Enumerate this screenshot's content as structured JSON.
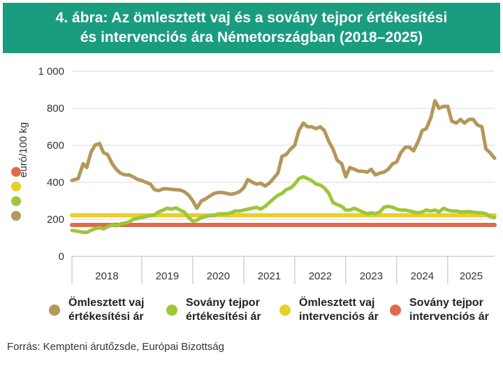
{
  "header": {
    "title_line1": "4. ábra: Az ömlesztett vaj és a sovány tejpor értékesítési",
    "title_line2": "és intervenciós ára Németországban (2018–2025)"
  },
  "colors": {
    "header_bg": "#1a9c7f",
    "butter_price": "#b4975a",
    "smp_price": "#9dc63b",
    "butter_intervention": "#e8cf2a",
    "smp_intervention": "#e06a4a"
  },
  "chart_data": {
    "type": "line",
    "ylabel": "euró/100 kg",
    "ylim": [
      0,
      1000
    ],
    "yticks": [
      "0",
      "200",
      "400",
      "600",
      "800",
      "1 000"
    ],
    "ytick_values": [
      0,
      200,
      400,
      600,
      800,
      1000
    ],
    "xlim": [
      2017.63,
      2025.92
    ],
    "year_labels": [
      "2018",
      "2019",
      "2020",
      "2021",
      "2022",
      "2023",
      "2024",
      "2025"
    ],
    "year_boundaries": [
      2019,
      2020,
      2021,
      2022,
      2023,
      2024,
      2025
    ],
    "grid": "horizontal",
    "series": [
      {
        "name": "Ömlesztett vaj értékesítési ár",
        "key": "butter",
        "x": [
          2017.63,
          2017.75,
          2017.85,
          2017.92,
          2018.0,
          2018.08,
          2018.17,
          2018.25,
          2018.33,
          2018.42,
          2018.5,
          2018.58,
          2018.67,
          2018.75,
          2018.83,
          2018.92,
          2019.0,
          2019.08,
          2019.17,
          2019.25,
          2019.33,
          2019.42,
          2019.5,
          2019.58,
          2019.67,
          2019.75,
          2019.83,
          2019.92,
          2020.0,
          2020.08,
          2020.17,
          2020.25,
          2020.33,
          2020.42,
          2020.5,
          2020.58,
          2020.67,
          2020.75,
          2020.83,
          2020.92,
          2021.0,
          2021.08,
          2021.17,
          2021.25,
          2021.33,
          2021.42,
          2021.5,
          2021.58,
          2021.67,
          2021.75,
          2021.83,
          2021.92,
          2022.0,
          2022.08,
          2022.17,
          2022.25,
          2022.33,
          2022.42,
          2022.5,
          2022.58,
          2022.67,
          2022.75,
          2022.83,
          2022.92,
          2023.0,
          2023.08,
          2023.17,
          2023.25,
          2023.33,
          2023.42,
          2023.5,
          2023.58,
          2023.67,
          2023.75,
          2023.83,
          2023.92,
          2024.0,
          2024.08,
          2024.17,
          2024.25,
          2024.33,
          2024.42,
          2024.5,
          2024.58,
          2024.67,
          2024.75,
          2024.83,
          2024.92,
          2025.0,
          2025.08,
          2025.17,
          2025.25,
          2025.33,
          2025.42,
          2025.5,
          2025.58,
          2025.67,
          2025.75,
          2025.83,
          2025.92
        ],
        "values": [
          410,
          420,
          500,
          480,
          560,
          600,
          610,
          560,
          550,
          500,
          470,
          450,
          440,
          440,
          430,
          415,
          410,
          400,
          390,
          360,
          355,
          365,
          365,
          362,
          360,
          358,
          350,
          330,
          300,
          260,
          300,
          310,
          325,
          340,
          345,
          345,
          340,
          335,
          340,
          350,
          370,
          415,
          400,
          390,
          395,
          380,
          395,
          420,
          450,
          540,
          550,
          580,
          600,
          680,
          720,
          700,
          700,
          690,
          700,
          680,
          620,
          580,
          520,
          500,
          430,
          480,
          470,
          460,
          460,
          455,
          470,
          440,
          450,
          455,
          470,
          500,
          510,
          560,
          590,
          590,
          570,
          620,
          680,
          690,
          750,
          840,
          800,
          810,
          810,
          730,
          720,
          740,
          720,
          740,
          740,
          710,
          700,
          580,
          560,
          530
        ]
      },
      {
        "name": "Sovány tejpor értékesítési ár",
        "key": "smp",
        "x": [
          2017.63,
          2017.75,
          2017.85,
          2017.92,
          2018.0,
          2018.08,
          2018.17,
          2018.25,
          2018.33,
          2018.42,
          2018.5,
          2018.58,
          2018.67,
          2018.75,
          2018.83,
          2018.92,
          2019.0,
          2019.08,
          2019.17,
          2019.25,
          2019.33,
          2019.42,
          2019.5,
          2019.58,
          2019.67,
          2019.75,
          2019.83,
          2019.92,
          2020.0,
          2020.08,
          2020.17,
          2020.25,
          2020.33,
          2020.42,
          2020.5,
          2020.58,
          2020.67,
          2020.75,
          2020.83,
          2020.92,
          2021.0,
          2021.08,
          2021.17,
          2021.25,
          2021.33,
          2021.42,
          2021.5,
          2021.58,
          2021.67,
          2021.75,
          2021.83,
          2021.92,
          2022.0,
          2022.08,
          2022.17,
          2022.25,
          2022.33,
          2022.42,
          2022.5,
          2022.58,
          2022.67,
          2022.75,
          2022.83,
          2022.92,
          2023.0,
          2023.08,
          2023.17,
          2023.25,
          2023.33,
          2023.42,
          2023.5,
          2023.58,
          2023.67,
          2023.75,
          2023.83,
          2023.92,
          2024.0,
          2024.08,
          2024.17,
          2024.25,
          2024.33,
          2024.42,
          2024.5,
          2024.58,
          2024.67,
          2024.75,
          2024.83,
          2024.92,
          2025.0,
          2025.08,
          2025.17,
          2025.25,
          2025.33,
          2025.42,
          2025.5,
          2025.58,
          2025.67,
          2025.75,
          2025.83,
          2025.92
        ],
        "values": [
          140,
          135,
          130,
          130,
          140,
          150,
          155,
          148,
          160,
          170,
          165,
          175,
          180,
          185,
          200,
          205,
          210,
          215,
          220,
          225,
          240,
          250,
          260,
          255,
          262,
          250,
          240,
          210,
          190,
          195,
          210,
          215,
          220,
          220,
          230,
          230,
          230,
          235,
          245,
          245,
          250,
          255,
          260,
          265,
          255,
          270,
          290,
          310,
          330,
          340,
          360,
          370,
          390,
          420,
          430,
          420,
          410,
          390,
          385,
          370,
          340,
          290,
          280,
          270,
          250,
          250,
          260,
          250,
          240,
          230,
          235,
          230,
          240,
          265,
          270,
          265,
          255,
          250,
          250,
          245,
          240,
          235,
          240,
          250,
          245,
          250,
          240,
          260,
          250,
          245,
          245,
          240,
          240,
          242,
          238,
          236,
          235,
          230,
          215,
          210
        ]
      },
      {
        "name": "Ömlesztett vaj intervenciós ár",
        "key": "butter_int",
        "x": [
          2017.63,
          2025.92
        ],
        "values": [
          221.75,
          221.75
        ]
      },
      {
        "name": "Sovány tejpor intervenciós ár",
        "key": "smp_int",
        "x": [
          2017.63,
          2025.92
        ],
        "values": [
          169.8,
          169.8
        ]
      }
    ]
  },
  "legend": {
    "item1": {
      "line1": "Ömlesztett vaj",
      "line2": "értékesítési ár"
    },
    "item2": {
      "line1": "Sovány tejpor",
      "line2": "értékesítési ár"
    },
    "item3": {
      "line1": "Ömlesztett vaj",
      "line2": "intervenciós ár"
    },
    "item4": {
      "line1": "Sovány tejpor",
      "line2": "intervenciós ár"
    }
  },
  "source": "Forrás: Kempteni árutőzsde, Európai Bizottság"
}
